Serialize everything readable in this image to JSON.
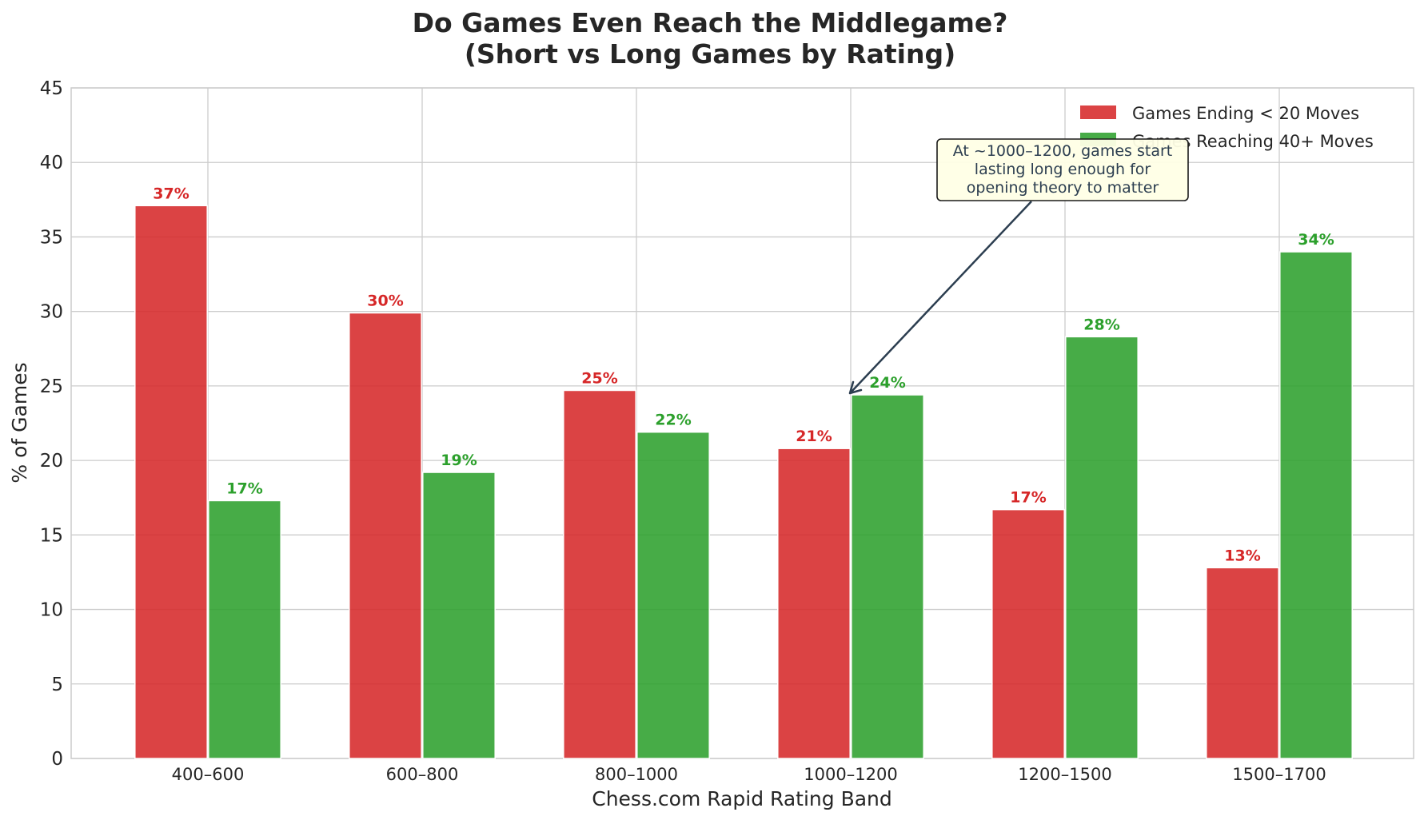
{
  "chart_data": {
    "type": "bar",
    "title": [
      "Do Games Even Reach the Middlegame?",
      "(Short vs Long Games by Rating)"
    ],
    "xlabel": "Chess.com Rapid Rating Band",
    "ylabel": "% of Games",
    "ylim": [
      0,
      45
    ],
    "yticks": [
      0,
      5,
      10,
      15,
      20,
      25,
      30,
      35,
      40,
      45
    ],
    "grid": true,
    "legend_position": "top-right",
    "categories": [
      "400–600",
      "600–800",
      "800–1000",
      "1000–1200",
      "1200–1500",
      "1500–1700"
    ],
    "series": [
      {
        "name": "Games Ending < 20 Moves",
        "color": "#d62728",
        "values": [
          37.1,
          29.9,
          24.7,
          20.8,
          16.7,
          12.8
        ],
        "labels": [
          "37%",
          "30%",
          "25%",
          "21%",
          "17%",
          "13%"
        ]
      },
      {
        "name": "Games Reaching 40+ Moves",
        "color": "#2ca02c",
        "values": [
          17.3,
          19.2,
          21.9,
          24.4,
          28.3,
          34.0
        ],
        "labels": [
          "17%",
          "19%",
          "22%",
          "24%",
          "28%",
          "34%"
        ]
      }
    ],
    "annotation": {
      "lines": [
        "At ~1000–1200, games start",
        "lasting long enough for",
        "opening theory to matter"
      ],
      "target_category": "1000–1200",
      "target_value": 24.4
    }
  }
}
